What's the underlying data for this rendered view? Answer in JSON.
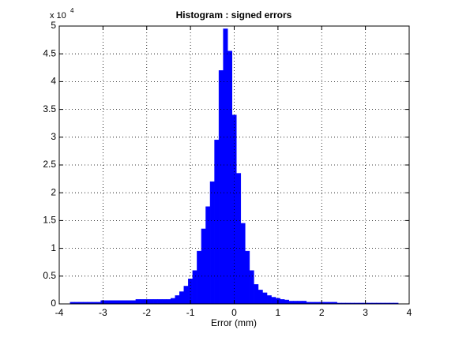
{
  "chart_data": {
    "type": "histogram",
    "title": "Histogram : signed errors",
    "xlabel": "Error (mm)",
    "y_multiplier": {
      "base": "x 10",
      "exponent": "4"
    },
    "bins": [
      -3.75,
      -3.65,
      -3.55,
      -3.45,
      -3.35,
      -3.25,
      -3.15,
      -3.05,
      -2.95,
      -2.85,
      -2.75,
      -2.65,
      -2.55,
      -2.45,
      -2.35,
      -2.25,
      -2.15,
      -2.05,
      -1.95,
      -1.85,
      -1.75,
      -1.65,
      -1.55,
      -1.45,
      -1.35,
      -1.25,
      -1.15,
      -1.05,
      -0.95,
      -0.85,
      -0.75,
      -0.65,
      -0.55,
      -0.45,
      -0.35,
      -0.25,
      -0.15,
      -0.05,
      0.05,
      0.15,
      0.25,
      0.35,
      0.45,
      0.55,
      0.65,
      0.75,
      0.85,
      0.95,
      1.05,
      1.15,
      1.25,
      1.35,
      1.45,
      1.55,
      1.65,
      1.75,
      1.85,
      1.95,
      2.05,
      2.15,
      2.25,
      2.35,
      2.45,
      2.55,
      2.65,
      2.75,
      2.85,
      2.95,
      3.05,
      3.15,
      3.25,
      3.35,
      3.45,
      3.55,
      3.65,
      3.75
    ],
    "counts": [
      0.03,
      0.03,
      0.03,
      0.03,
      0.03,
      0.03,
      0.03,
      0.06,
      0.06,
      0.06,
      0.06,
      0.06,
      0.06,
      0.06,
      0.06,
      0.08,
      0.08,
      0.08,
      0.08,
      0.08,
      0.08,
      0.08,
      0.08,
      0.1,
      0.15,
      0.22,
      0.32,
      0.45,
      0.6,
      0.95,
      1.35,
      1.75,
      2.2,
      2.95,
      4.2,
      4.95,
      4.55,
      3.4,
      2.35,
      1.45,
      0.95,
      0.6,
      0.35,
      0.25,
      0.2,
      0.15,
      0.12,
      0.1,
      0.08,
      0.07,
      0.05,
      0.05,
      0.05,
      0.05,
      0.03,
      0.03,
      0.03,
      0.03,
      0.03,
      0.03,
      0.03,
      0.015,
      0.015,
      0.015,
      0.015,
      0.015,
      0.015,
      0.015,
      0.015,
      0.015,
      0.015,
      0.015,
      0.015,
      0.015,
      0.015
    ],
    "color": "#0000ff",
    "xlim": [
      -4,
      4
    ],
    "xticks": [
      -4,
      -3,
      -2,
      -1,
      0,
      1,
      2,
      3,
      4
    ],
    "ylim": [
      0,
      5
    ],
    "yticks": [
      0,
      0.5,
      1,
      1.5,
      2,
      2.5,
      3,
      3.5,
      4,
      4.5,
      5
    ],
    "grid": true
  }
}
